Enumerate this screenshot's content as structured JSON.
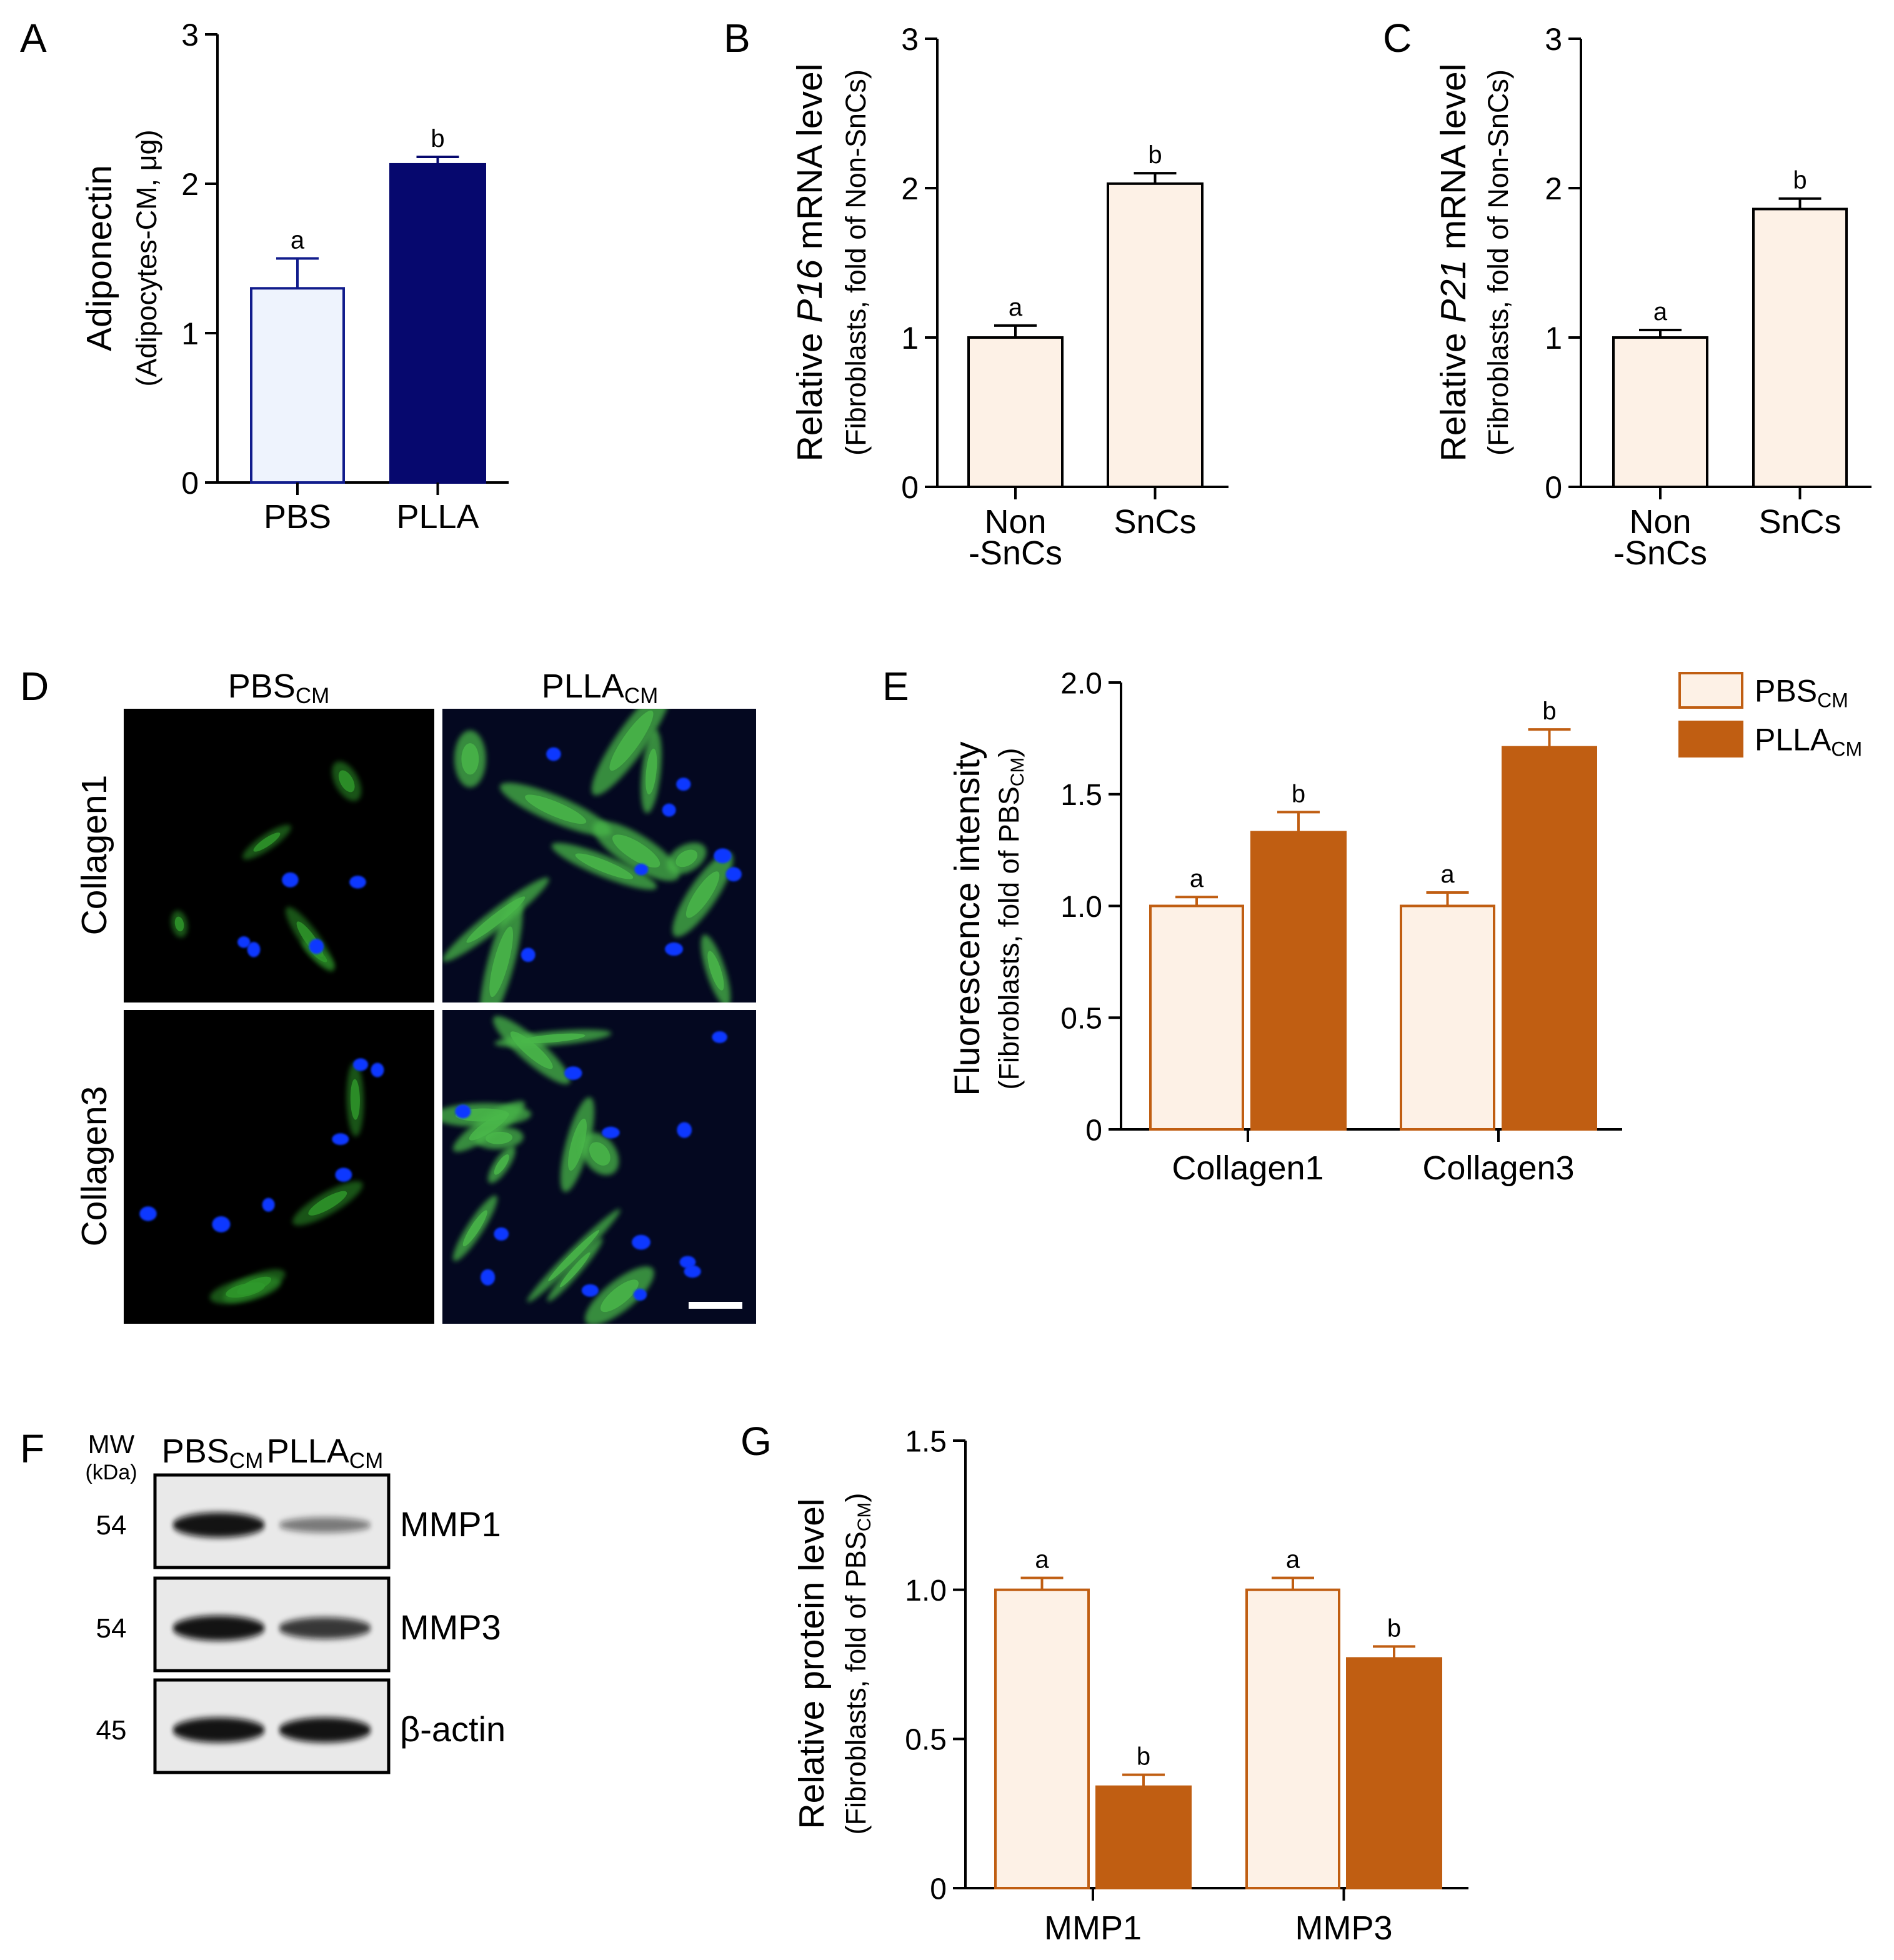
{
  "colors": {
    "black": "#000000",
    "adipo_pbs_fill": "#eef3fd",
    "adipo_pbs_stroke": "#111c8c",
    "adipo_plla_fill": "#06086e",
    "snc_fill": "#fdf1e6",
    "pbs_cm_fill": "#fdf1e6",
    "pbs_cm_stroke": "#c05e12",
    "plla_cm_fill": "#c05e12",
    "micro_bg": "#000000",
    "micro_bg_bright": "#040820",
    "cell_green": "#2f9a2c",
    "cell_green_bright": "#4ab84a",
    "nucleus_blue": "#1038ff",
    "blot_bg": "#e9e9e9",
    "blot_band": "#0c0c0c",
    "scale_bar": "#ffffff"
  },
  "panels": {
    "A": {
      "letter": "A"
    },
    "B": {
      "letter": "B"
    },
    "C": {
      "letter": "C"
    },
    "D": {
      "letter": "D",
      "columns": [
        {
          "main": "PBS",
          "sub": "CM"
        },
        {
          "main": "PLLA",
          "sub": "CM"
        }
      ],
      "rows": [
        "Collagen1",
        "Collagen3"
      ],
      "scale_bar": true
    },
    "E": {
      "letter": "E"
    },
    "F": {
      "letter": "F",
      "mw_title": "MW",
      "mw_unit": "(kDa)",
      "lanes": [
        {
          "main": "PBS",
          "sub": "CM"
        },
        {
          "main": "PLLA",
          "sub": "CM"
        }
      ],
      "blots": [
        {
          "mw": "54",
          "protein": "MMP1",
          "intensity": [
            1.0,
            0.35
          ]
        },
        {
          "mw": "54",
          "protein": "MMP3",
          "intensity": [
            1.0,
            0.77
          ]
        },
        {
          "mw": "45",
          "protein": "β-actin",
          "intensity": [
            1.0,
            1.0
          ]
        }
      ]
    },
    "G": {
      "letter": "G"
    }
  },
  "legend": {
    "entries": [
      {
        "main": "PBS",
        "sub": "CM",
        "style": "pbs"
      },
      {
        "main": "PLLA",
        "sub": "CM",
        "style": "plla"
      }
    ]
  },
  "chart_data": [
    {
      "id": "A",
      "type": "bar",
      "ylabel": "Adiponectin",
      "ylabel2": "(Adipocytes-CM, μg)",
      "ylim": [
        0,
        3
      ],
      "yticks": [
        "0",
        "1",
        "2",
        "3"
      ],
      "categories": [
        [
          "PBS"
        ],
        [
          "PLLA"
        ]
      ],
      "series": [
        {
          "values": [
            1.3,
            2.13
          ],
          "errors": [
            0.2,
            0.05
          ],
          "letters": [
            "a",
            "b"
          ]
        }
      ]
    },
    {
      "id": "B",
      "type": "bar",
      "ylabel_parts": [
        {
          "t": "Relative ",
          "i": false
        },
        {
          "t": "P16",
          "i": true
        },
        {
          "t": " mRNA level",
          "i": false
        }
      ],
      "ylabel2": "(Fibroblasts, fold of Non-SnCs)",
      "ylim": [
        0,
        3
      ],
      "yticks": [
        "0",
        "1",
        "2",
        "3"
      ],
      "categories": [
        [
          "Non",
          "-SnCs"
        ],
        [
          "SnCs"
        ]
      ],
      "series": [
        {
          "values": [
            1.0,
            2.03
          ],
          "errors": [
            0.08,
            0.07
          ],
          "letters": [
            "a",
            "b"
          ]
        }
      ]
    },
    {
      "id": "C",
      "type": "bar",
      "ylabel_parts": [
        {
          "t": "Relative ",
          "i": false
        },
        {
          "t": "P21",
          "i": true
        },
        {
          "t": " mRNA level",
          "i": false
        }
      ],
      "ylabel2": "(Fibroblasts, fold of Non-SnCs)",
      "ylim": [
        0,
        3
      ],
      "yticks": [
        "0",
        "1",
        "2",
        "3"
      ],
      "categories": [
        [
          "Non",
          "-SnCs"
        ],
        [
          "SnCs"
        ]
      ],
      "series": [
        {
          "values": [
            1.0,
            1.86
          ],
          "errors": [
            0.05,
            0.07
          ],
          "letters": [
            "a",
            "b"
          ]
        }
      ]
    },
    {
      "id": "E",
      "type": "bar",
      "ylabel": "Fluorescence intensity",
      "ylabel2_main": "(Fibroblasts, fold of PBS",
      "ylabel2_sub": "CM",
      "ylabel2_end": ")",
      "ylim": [
        0,
        2
      ],
      "yticks": [
        "0",
        "0.5",
        "1.0",
        "1.5",
        "2.0"
      ],
      "categories": [
        [
          "Collagen1"
        ],
        [
          "Collagen3"
        ]
      ],
      "series": [
        {
          "values": [
            1.0,
            1.0
          ],
          "errors": [
            0.04,
            0.06
          ],
          "letters": [
            "a",
            "a"
          ]
        },
        {
          "values": [
            1.33,
            1.71
          ],
          "errors": [
            0.09,
            0.08
          ],
          "letters": [
            "b",
            "b"
          ]
        }
      ]
    },
    {
      "id": "G",
      "type": "bar",
      "ylabel": "Relative protein level",
      "ylabel2_main": "(Fibroblasts, fold of PBS",
      "ylabel2_sub": "CM",
      "ylabel2_end": ")",
      "ylim": [
        0,
        1.5
      ],
      "yticks": [
        "0",
        "0.5",
        "1.0",
        "1.5"
      ],
      "categories": [
        [
          "MMP1"
        ],
        [
          "MMP3"
        ]
      ],
      "series": [
        {
          "values": [
            1.0,
            1.0
          ],
          "errors": [
            0.04,
            0.04
          ],
          "letters": [
            "a",
            "a"
          ]
        },
        {
          "values": [
            0.34,
            0.77
          ],
          "errors": [
            0.04,
            0.04
          ],
          "letters": [
            "b",
            "b"
          ]
        }
      ]
    }
  ]
}
